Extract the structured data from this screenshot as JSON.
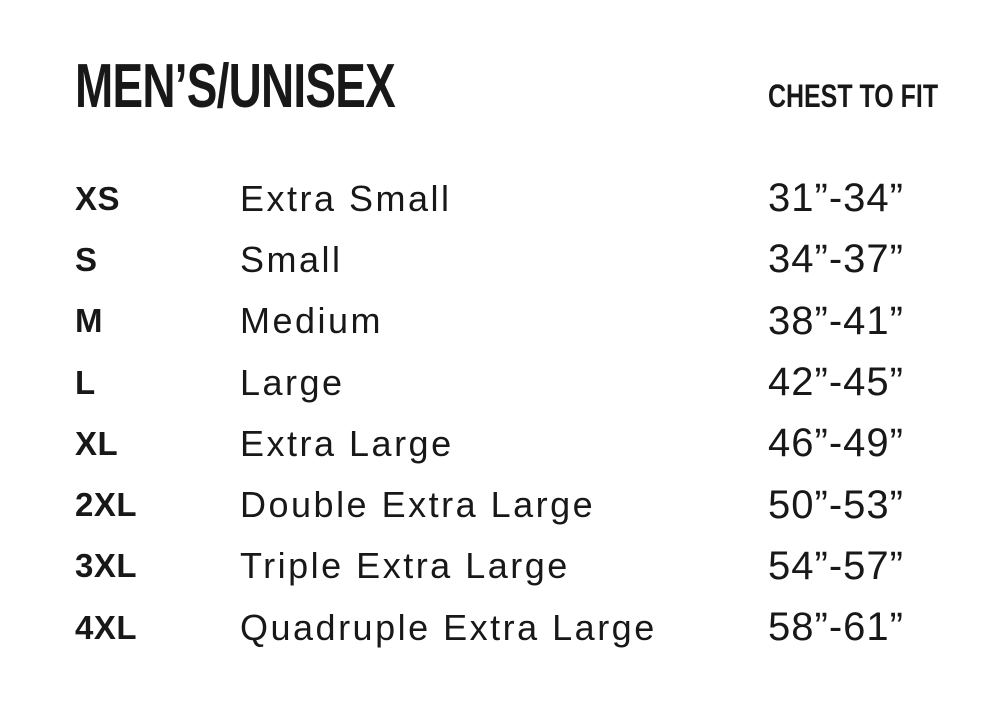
{
  "header": {
    "title": "MEN’S/UNISEX",
    "chest_to_fit_label": "CHEST TO FIT"
  },
  "colors": {
    "background": "#ffffff",
    "text": "#181818"
  },
  "chart_data": {
    "type": "table",
    "title": "MEN’S/UNISEX",
    "columns": [
      "size_code",
      "size_name",
      "chest_to_fit"
    ],
    "rows": [
      [
        "XS",
        "Extra Small",
        "31”-34”"
      ],
      [
        "S",
        "Small",
        "34”-37”"
      ],
      [
        "M",
        "Medium",
        "38”-41”"
      ],
      [
        "L",
        "Large",
        "42”-45”"
      ],
      [
        "XL",
        "Extra Large",
        "46”-49”"
      ],
      [
        "2XL",
        "Double Extra Large",
        "50”-53”"
      ],
      [
        "3XL",
        "Triple Extra Large",
        "54”-57”"
      ],
      [
        "4XL",
        "Quadruple Extra Large",
        "58”-61”"
      ]
    ],
    "chest_ranges_inches": [
      [
        31,
        34
      ],
      [
        34,
        37
      ],
      [
        38,
        41
      ],
      [
        42,
        45
      ],
      [
        46,
        49
      ],
      [
        50,
        53
      ],
      [
        54,
        57
      ],
      [
        58,
        61
      ]
    ]
  }
}
